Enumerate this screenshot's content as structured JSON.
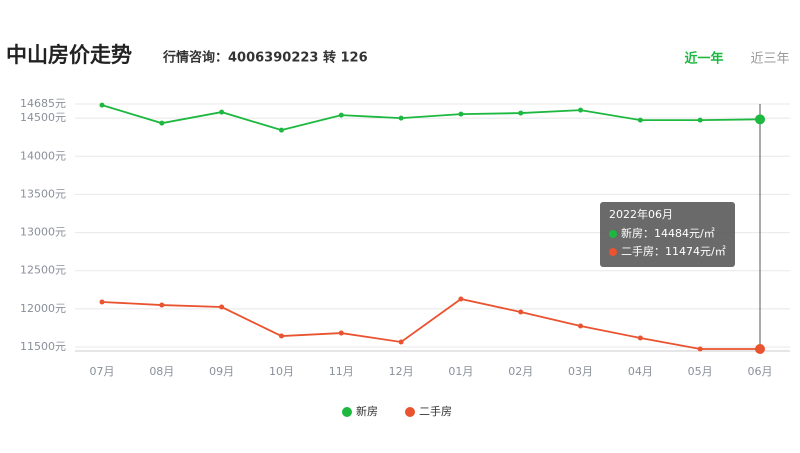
{
  "header": {
    "title": "中山房价走势",
    "subtitle": "行情咨询：4006390223 转 126",
    "tabs": [
      "近一年",
      "近三年"
    ]
  },
  "chart_data": {
    "type": "line",
    "categories": [
      "07月",
      "08月",
      "09月",
      "10月",
      "11月",
      "12月",
      "01月",
      "02月",
      "03月",
      "04月",
      "05月",
      "06月"
    ],
    "series": [
      {
        "name": "新房",
        "color": "#1db83f",
        "values": [
          14670,
          14434,
          14579,
          14343,
          14539,
          14500,
          14552,
          14566,
          14605,
          14474,
          14474,
          14484
        ]
      },
      {
        "name": "二手房",
        "color": "#e9532f",
        "values": [
          12090,
          12050,
          12024,
          11644,
          11683,
          11566,
          12129,
          11959,
          11775,
          11618,
          11474,
          11474
        ]
      }
    ],
    "ylim": [
      11474,
      14685
    ],
    "yticks": [
      {
        "value": 11500,
        "label": "11500元"
      },
      {
        "value": 12000,
        "label": "12000元"
      },
      {
        "value": 12500,
        "label": "12500元"
      },
      {
        "value": 13000,
        "label": "13000元"
      },
      {
        "value": 13500,
        "label": "13500元"
      },
      {
        "value": 14000,
        "label": "14000元"
      },
      {
        "value": 14500,
        "label": "14500元"
      },
      {
        "value": 14685,
        "label": "14685元"
      }
    ],
    "grid": true,
    "tooltip": {
      "title": "2022年06月",
      "items": [
        "新房：14484元/㎡",
        "二手房：11474元/㎡"
      ]
    }
  }
}
